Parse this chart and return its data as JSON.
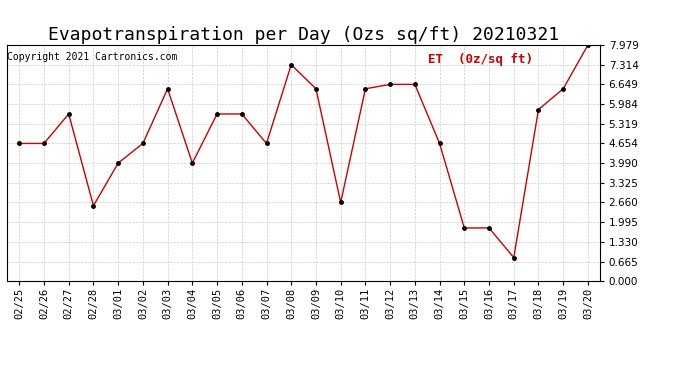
{
  "title": "Evapotranspiration per Day (Ozs sq/ft) 20210321",
  "copyright": "Copyright 2021 Cartronics.com",
  "legend_label": "ET  (0z/sq ft)",
  "dates": [
    "02/25",
    "02/26",
    "02/27",
    "02/28",
    "03/01",
    "03/02",
    "03/03",
    "03/04",
    "03/05",
    "03/06",
    "03/07",
    "03/08",
    "03/09",
    "03/10",
    "03/11",
    "03/12",
    "03/13",
    "03/14",
    "03/15",
    "03/16",
    "03/17",
    "03/18",
    "03/19",
    "03/20"
  ],
  "values": [
    4.654,
    4.654,
    5.65,
    2.55,
    3.99,
    4.654,
    6.5,
    3.99,
    5.65,
    5.65,
    4.654,
    7.314,
    6.5,
    2.66,
    6.5,
    6.649,
    6.649,
    4.654,
    1.8,
    1.8,
    0.8,
    5.8,
    6.5,
    7.979
  ],
  "ylim": [
    0.0,
    7.979
  ],
  "yticks": [
    0.0,
    0.665,
    1.33,
    1.995,
    2.66,
    3.325,
    3.99,
    4.654,
    5.319,
    5.984,
    6.649,
    7.314,
    7.979
  ],
  "line_color": "#cc0000",
  "marker_color": "#000000",
  "background_color": "#ffffff",
  "grid_color": "#cccccc",
  "title_fontsize": 13,
  "tick_fontsize": 7.5,
  "legend_color": "#cc0000",
  "copyright_color": "#000000",
  "copyright_fontsize": 7
}
